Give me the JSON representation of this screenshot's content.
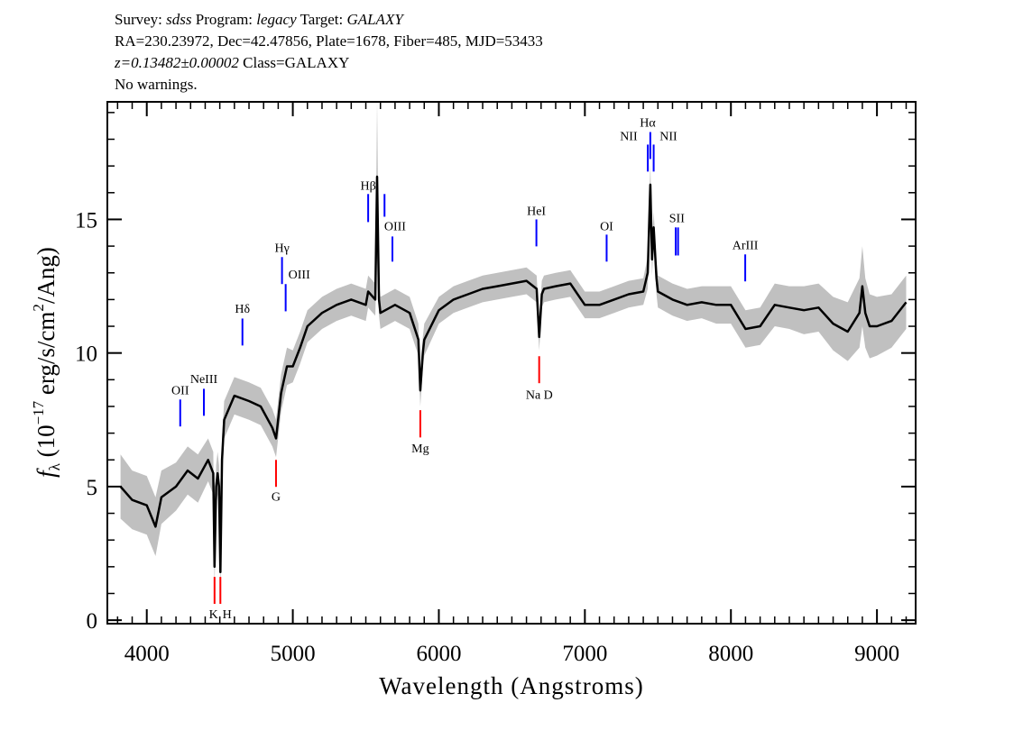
{
  "header": {
    "line1": {
      "survey_label": "Survey:",
      "survey": "sdss",
      "program_label": "Program:",
      "program": "legacy",
      "target_label": "Target:",
      "target": "GALAXY"
    },
    "line2": "RA=230.23972, Dec=42.47856, Plate=1678, Fiber=485, MJD=53433",
    "line3": {
      "z": "z=0.13482±0.00002",
      "class": "Class=GALAXY"
    },
    "line4": "No warnings."
  },
  "chart_data": {
    "type": "line",
    "xlabel": "Wavelength (Angstroms)",
    "ylabel": "f_λ (10^-17 erg/s/cm^2/Ang)",
    "xlim": [
      3730,
      9265
    ],
    "ylim": [
      -0.13,
      19.4
    ],
    "xticks": [
      4000,
      5000,
      6000,
      7000,
      8000,
      9000
    ],
    "yticks": [
      0,
      5,
      10,
      15
    ],
    "grid": false,
    "colors": {
      "flux": "#000000",
      "error_band": "#c0c0c0",
      "emission": "#0000ff",
      "absorption": "#ff0000",
      "sky": "#000000"
    },
    "spectrum": {
      "wavelength": [
        3820,
        3900,
        4000,
        4060,
        4100,
        4200,
        4280,
        4350,
        4420,
        4455,
        4464,
        4475,
        4485,
        4495,
        4504,
        4515,
        4530,
        4600,
        4700,
        4780,
        4860,
        4885,
        4920,
        4960,
        5000,
        5050,
        5100,
        5200,
        5300,
        5400,
        5500,
        5516,
        5565,
        5577,
        5590,
        5600,
        5700,
        5800,
        5860,
        5873,
        5890,
        5900,
        6000,
        6100,
        6200,
        6300,
        6400,
        6500,
        6600,
        6670,
        6687,
        6705,
        6720,
        6800,
        6900,
        7000,
        7100,
        7200,
        7300,
        7400,
        7430,
        7448,
        7460,
        7471,
        7490,
        7500,
        7600,
        7700,
        7800,
        7900,
        8000,
        8100,
        8200,
        8300,
        8400,
        8500,
        8600,
        8700,
        8800,
        8880,
        8900,
        8920,
        8950,
        9000,
        9100,
        9200
      ],
      "flux": [
        5.0,
        4.5,
        4.3,
        3.5,
        4.6,
        5.0,
        5.6,
        5.3,
        6.0,
        5.5,
        2.0,
        5.0,
        5.5,
        5.0,
        1.8,
        6.0,
        7.5,
        8.4,
        8.2,
        8.0,
        7.2,
        6.8,
        8.5,
        9.5,
        9.5,
        10.2,
        11.0,
        11.5,
        11.8,
        12.0,
        11.8,
        12.3,
        12.0,
        16.6,
        12.0,
        11.5,
        11.8,
        11.5,
        10.5,
        8.6,
        10.0,
        10.5,
        11.6,
        12.0,
        12.2,
        12.4,
        12.5,
        12.6,
        12.7,
        12.4,
        10.6,
        12.2,
        12.4,
        12.5,
        12.6,
        11.8,
        11.8,
        12.0,
        12.2,
        12.3,
        13.0,
        16.3,
        13.5,
        14.7,
        12.8,
        12.3,
        12.0,
        11.8,
        11.9,
        11.8,
        11.8,
        10.9,
        11.0,
        11.8,
        11.7,
        11.6,
        11.7,
        11.1,
        10.8,
        11.5,
        12.5,
        11.5,
        11.0,
        11.0,
        11.2,
        11.9
      ],
      "error": [
        1.2,
        1.1,
        1.1,
        1.1,
        1.0,
        0.9,
        0.9,
        0.9,
        0.8,
        0.8,
        0.8,
        0.8,
        0.8,
        0.8,
        0.8,
        0.8,
        0.7,
        0.7,
        0.7,
        0.7,
        0.7,
        0.7,
        0.7,
        0.7,
        0.6,
        0.6,
        0.6,
        0.6,
        0.6,
        0.6,
        0.6,
        0.6,
        0.6,
        2.8,
        0.6,
        0.6,
        0.6,
        0.6,
        0.6,
        0.6,
        0.6,
        0.6,
        0.5,
        0.5,
        0.5,
        0.5,
        0.5,
        0.5,
        0.5,
        0.5,
        0.5,
        0.5,
        0.5,
        0.5,
        0.5,
        0.5,
        0.5,
        0.5,
        0.5,
        0.5,
        0.6,
        0.8,
        0.6,
        0.6,
        0.6,
        0.6,
        0.6,
        0.6,
        0.6,
        0.7,
        0.7,
        0.7,
        0.7,
        0.8,
        0.8,
        0.9,
        0.9,
        1.0,
        1.1,
        1.3,
        1.5,
        1.3,
        1.2,
        1.1,
        1.0,
        1.0
      ]
    },
    "lines": [
      {
        "label": "OII",
        "wavelength": 4229,
        "type": "emission",
        "marker": [
          7.25,
          8.26
        ],
        "label_flux": 8.63,
        "label_wavelength": 4229
      },
      {
        "label": "NeIII",
        "wavelength": 4391,
        "type": "emission",
        "marker": [
          7.65,
          8.66
        ],
        "label_flux": 9.04,
        "label_wavelength": 4391
      },
      {
        "label": "K",
        "wavelength": 4464,
        "type": "absorption",
        "marker": [
          0.61,
          1.62
        ],
        "label_flux": 0.24,
        "label_wavelength": 4457
      },
      {
        "label": "H",
        "wavelength": 4504,
        "type": "absorption",
        "marker": [
          0.61,
          1.62
        ],
        "label_flux": 0.24,
        "label_wavelength": 4550
      },
      {
        "label": "Hδ",
        "wavelength": 4655,
        "type": "emission",
        "marker": [
          10.28,
          11.29
        ],
        "label_flux": 11.67,
        "label_wavelength": 4655
      },
      {
        "label": "G",
        "wavelength": 4885,
        "type": "absorption",
        "marker": [
          4.99,
          6.0
        ],
        "label_flux": 4.65,
        "label_wavelength": 4885
      },
      {
        "label": "Hγ",
        "wavelength": 4926,
        "type": "emission",
        "marker": [
          12.58,
          13.59
        ],
        "label_flux": 13.96,
        "label_wavelength": 4926
      },
      {
        "label": "OIII",
        "wavelength": 4951,
        "type": "emission",
        "marker": [
          11.56,
          12.58
        ],
        "label_flux": 12.95,
        "label_wavelength": 5044
      },
      {
        "label": "Hβ",
        "wavelength": 5516,
        "type": "emission",
        "marker": [
          14.9,
          15.95
        ],
        "label_flux": 16.28,
        "label_wavelength": 5516
      },
      {
        "label": "",
        "wavelength": 5628,
        "type": "emission",
        "marker": [
          15.1,
          15.95
        ],
        "label_flux": 0,
        "label_wavelength": 5628
      },
      {
        "label": "OIII",
        "wavelength": 5682,
        "type": "emission",
        "marker": [
          13.42,
          14.36
        ],
        "label_flux": 14.77,
        "label_wavelength": 5700
      },
      {
        "label": "Mg",
        "wavelength": 5873,
        "type": "absorption",
        "marker": [
          6.84,
          7.86
        ],
        "label_flux": 6.44,
        "label_wavelength": 5873
      },
      {
        "label": "HeI",
        "wavelength": 6668,
        "type": "emission",
        "marker": [
          13.99,
          15.0
        ],
        "label_flux": 15.34,
        "label_wavelength": 6668
      },
      {
        "label": "Na D",
        "wavelength": 6687,
        "type": "absorption",
        "marker": [
          8.87,
          9.88
        ],
        "label_flux": 8.46,
        "label_wavelength": 6688
      },
      {
        "label": "OI",
        "wavelength": 7149,
        "type": "emission",
        "marker": [
          13.42,
          14.43
        ],
        "label_flux": 14.77,
        "label_wavelength": 7149
      },
      {
        "label": "NII",
        "wavelength": 7431,
        "type": "emission",
        "marker": [
          16.79,
          17.8
        ],
        "label_flux": 18.14,
        "label_wavelength": 7300
      },
      {
        "label": "Hα",
        "wavelength": 7448,
        "type": "emission",
        "marker": [
          17.26,
          18.27
        ],
        "label_flux": 18.64,
        "label_wavelength": 7430
      },
      {
        "label": "NII",
        "wavelength": 7471,
        "type": "emission",
        "marker": [
          16.79,
          17.8
        ],
        "label_flux": 18.14,
        "label_wavelength": 7572
      },
      {
        "label": "SII",
        "wavelength": 7622,
        "type": "emission",
        "marker": [
          13.65,
          14.7
        ],
        "label_flux": 15.07,
        "label_wavelength": 7630
      },
      {
        "label": "",
        "wavelength": 7638,
        "type": "emission",
        "marker": [
          13.65,
          14.7
        ],
        "label_flux": 0,
        "label_wavelength": 7638
      },
      {
        "label": "ArIII",
        "wavelength": 8098,
        "type": "emission",
        "marker": [
          12.68,
          13.69
        ],
        "label_flux": 14.06,
        "label_wavelength": 8098
      }
    ]
  }
}
